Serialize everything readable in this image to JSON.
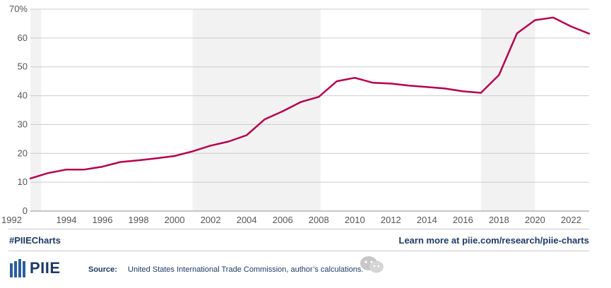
{
  "chart_data": {
    "type": "line",
    "title": "",
    "xlabel": "",
    "ylabel": "",
    "xlim": [
      1992,
      2023
    ],
    "ylim": [
      0,
      70
    ],
    "y_ticks": [
      0,
      10,
      20,
      30,
      40,
      50,
      60,
      70
    ],
    "y_tick_labels": [
      "0",
      "10",
      "20",
      "30",
      "40",
      "50",
      "60",
      "70%"
    ],
    "x_ticks": [
      1992,
      1994,
      1996,
      1998,
      2000,
      2002,
      2004,
      2006,
      2008,
      2010,
      2012,
      2014,
      2016,
      2018,
      2020,
      2022
    ],
    "grid": "horizontal",
    "shaded_periods": [
      [
        1992,
        1992.6
      ],
      [
        2001,
        2008.1
      ],
      [
        2017,
        2020
      ]
    ],
    "line_color": "#b5004f",
    "shade_color": "#f2f2f2",
    "grid_color": "#c9ccd2",
    "series": [
      {
        "x": [
          1992,
          1993,
          1994,
          1995,
          1996,
          1997,
          1998,
          1999,
          2000,
          2001,
          2002,
          2003,
          2004,
          2005,
          2006,
          2007,
          2008,
          2009,
          2010,
          2011,
          2012,
          2013,
          2014,
          2015,
          2016,
          2017,
          2018,
          2019,
          2020,
          2021,
          2022,
          2023
        ],
        "values": [
          11.3,
          13.2,
          14.4,
          14.4,
          15.4,
          17.0,
          17.6,
          18.3,
          19.1,
          20.7,
          22.7,
          24.1,
          26.3,
          31.8,
          34.6,
          37.8,
          39.6,
          45.0,
          46.2,
          44.5,
          44.2,
          43.5,
          43.0,
          42.5,
          41.5,
          41.0,
          47.2,
          61.6,
          66.2,
          67.1,
          64.0,
          61.5
        ]
      }
    ]
  },
  "footer": {
    "hashtag": "#PIIECharts",
    "learn_more": "Learn more at piie.com/research/piie-charts",
    "logo_text": "PIIE",
    "source_label": "Source:",
    "source_text": "United States International Trade Commission, author’s calculations."
  }
}
